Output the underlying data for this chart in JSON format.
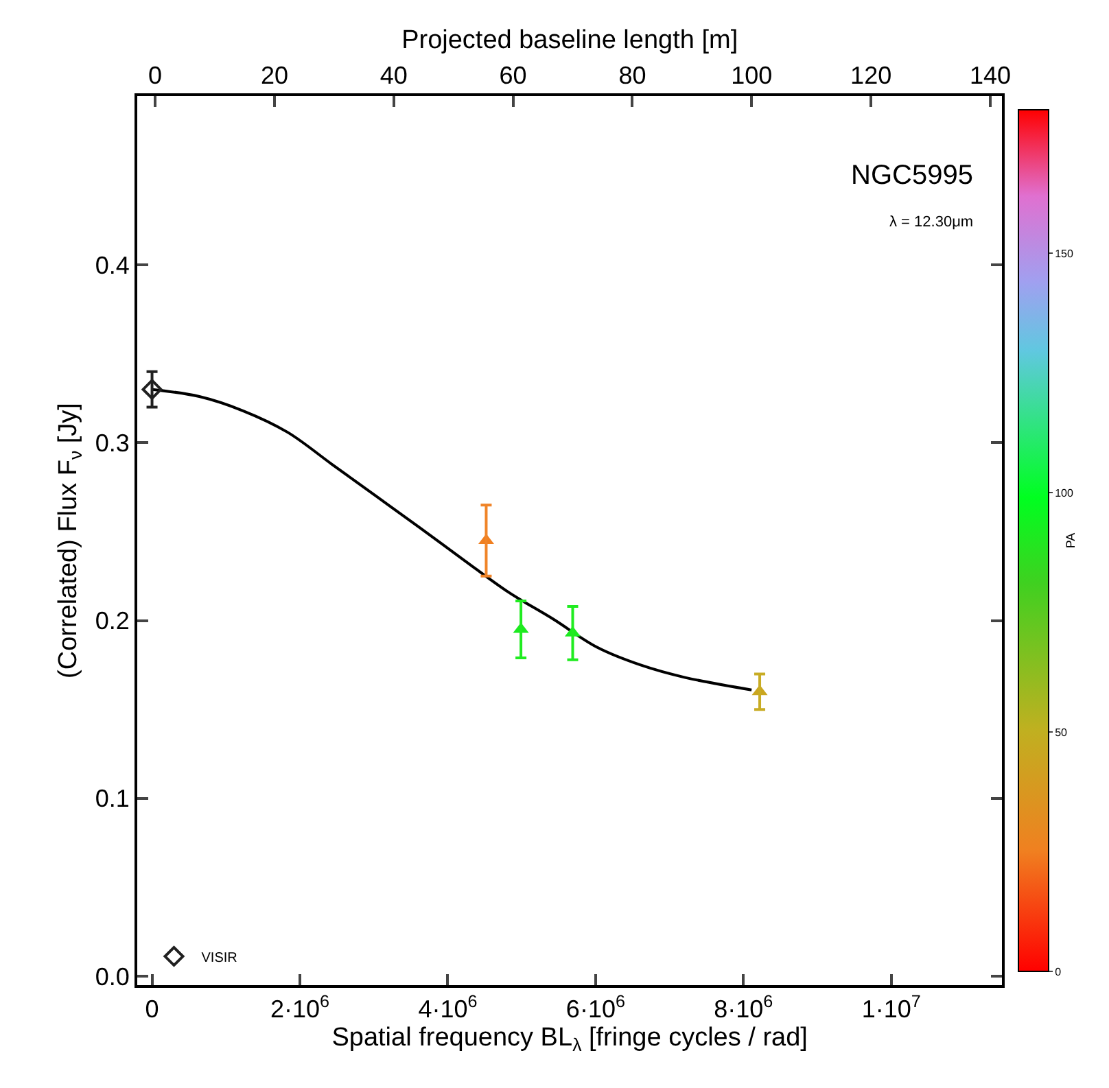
{
  "chart_data": {
    "type": "scatter",
    "annotations": [
      "NGC5995",
      "λ = 12.30μm"
    ],
    "xlabel": "Spatial frequency BL$_{λ}$ [fringe cycles / rad]",
    "ylabel": "(Correlated) Flux F$_{ν}$ [Jy]",
    "x2label": "Projected baseline length [m]",
    "clabel": "PA",
    "xlim": [
      -200000,
      11500000
    ],
    "xticks": [
      0,
      {
        "value": 2000000,
        "label": "2·10$^{6}$"
      },
      {
        "value": 4000000,
        "label": "4·10$^{6}$"
      },
      {
        "value": 6000000,
        "label": "6·10$^{6}$"
      },
      {
        "value": 8000000,
        "label": "8·10$^{6}$"
      },
      {
        "value": 10000000,
        "label": "1·10$^{7}$"
      }
    ],
    "x2lim": [
      -3,
      142
    ],
    "x2ticks": [
      0,
      20,
      40,
      60,
      80,
      100,
      120,
      140
    ],
    "ylim": [
      -0.005,
      0.495
    ],
    "yticks": [
      {
        "value": 0,
        "label": "0.0"
      },
      0.1,
      0.2,
      0.3,
      0.4
    ],
    "clim": [
      0,
      180
    ],
    "cticks": [
      0,
      50,
      100,
      150
    ],
    "legend": "bottom left",
    "series": [
      {
        "name": "VISIR",
        "type": "scatter",
        "marker": "diamond",
        "color": "#202020",
        "x": [
          0
        ],
        "values": [
          0.33
        ],
        "errors": [
          0.01
        ]
      },
      {
        "marker": "triangle",
        "colors": [
          "#f08428",
          "#20ec20",
          "#20ec20",
          "#c8ac24"
        ],
        "x": [
          4520000,
          4990000,
          5690000,
          8220000
        ],
        "values": [
          0.245,
          0.195,
          0.193,
          0.16
        ],
        "errors": [
          0.02,
          0.016,
          0.015,
          0.01
        ],
        "cvalues": [
          25,
          91,
          91,
          45
        ]
      },
      {
        "type": "line",
        "marker": "none",
        "color": "#000000",
        "x": [
          0,
          640000,
          1230000,
          1830000,
          2430000,
          3030000,
          3630000,
          4220000,
          4820000,
          5420000,
          6020000,
          6610000,
          7210000,
          8110000
        ],
        "values": [
          0.33,
          0.326,
          0.318,
          0.306,
          0.288,
          0.27,
          0.252,
          0.234,
          0.216,
          0.201,
          0.185,
          0.175,
          0.168,
          0.161
        ]
      }
    ]
  }
}
